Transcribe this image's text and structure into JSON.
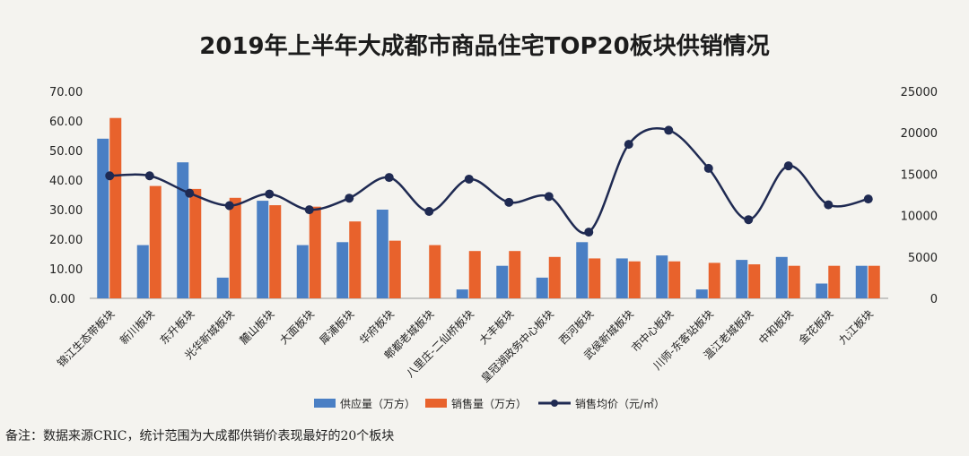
{
  "chart_data": {
    "type": "bar",
    "title": "2019年上半年大成都市商品住宅TOP20板块供销情况",
    "categories": [
      "锦江生态带板块",
      "新川板块",
      "东升板块",
      "光华新城板块",
      "麓山板块",
      "大面板块",
      "犀浦板块",
      "华府板块",
      "郫都老城板块",
      "八里庄-二仙桥板块",
      "大丰板块",
      "皇冠湖政务中心板块",
      "西河板块",
      "武侯新城板块",
      "市中心板块",
      "川师-东客站板块",
      "温江老城板块",
      "中和板块",
      "金花板块",
      "九江板块"
    ],
    "series": [
      {
        "name": "供应量（万方）",
        "axis": "left",
        "color": "#4a7fc4",
        "values": [
          54,
          18,
          46,
          7,
          33,
          18,
          19,
          30,
          0,
          3,
          11,
          7,
          19,
          13.5,
          14.5,
          3,
          13,
          14,
          5,
          11
        ]
      },
      {
        "name": "销售量（万方）",
        "axis": "left",
        "color": "#e8622c",
        "values": [
          61,
          38,
          37,
          34,
          31.5,
          31,
          26,
          19.5,
          18,
          16,
          16,
          14,
          13.5,
          12.5,
          12.5,
          12,
          11.5,
          11,
          11,
          11
        ]
      },
      {
        "name": "销售均价（元/㎡）",
        "axis": "right",
        "type": "line",
        "color": "#1f2a52",
        "values": [
          14800,
          14800,
          12700,
          11200,
          12600,
          10700,
          12100,
          14600,
          10500,
          14400,
          11600,
          12300,
          8000,
          18600,
          20300,
          15700,
          9500,
          16000,
          11300,
          12000
        ]
      }
    ],
    "left_axis": {
      "min": 0,
      "max": 70,
      "step": 10,
      "tick_labels": [
        "0.00",
        "10.00",
        "20.00",
        "30.00",
        "40.00",
        "50.00",
        "60.00",
        "70.00"
      ]
    },
    "right_axis": {
      "min": 0,
      "max": 25000,
      "step": 5000,
      "tick_labels": [
        "0",
        "5000",
        "10000",
        "15000",
        "20000",
        "25000"
      ]
    },
    "legend": {
      "position": "bottom",
      "labels": [
        "供应量（万方）",
        "销售量（万方）",
        "销售均价（元/㎡）"
      ]
    },
    "grid": false
  },
  "note": "备注：数据来源CRIC，统计范围为大成都供销价表现最好的20个板块"
}
